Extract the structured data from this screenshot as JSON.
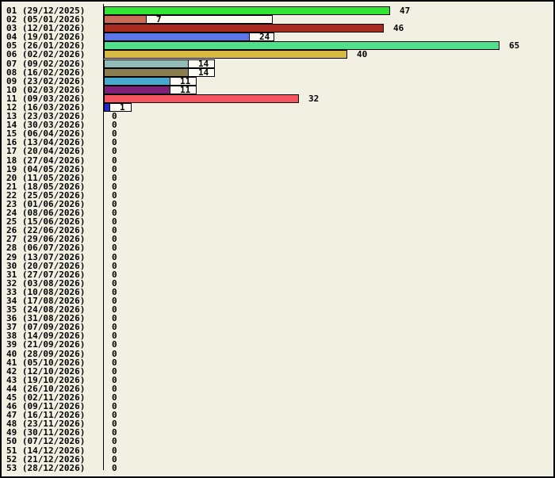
{
  "window": {
    "background": "#F2F0E3",
    "border_color": "#000000",
    "label_box_color": "#FBFBF3"
  },
  "chart_data": {
    "type": "bar",
    "orientation": "horizontal",
    "title": "",
    "xlabel": "",
    "ylabel": "",
    "xlim": [
      0,
      65
    ],
    "grid": false,
    "legend": false,
    "max_value": 65,
    "categories": [
      "01 (29/12/2025)",
      "02 (05/01/2026)",
      "03 (12/01/2026)",
      "04 (19/01/2026)",
      "05 (26/01/2026)",
      "06 (02/02/2026)",
      "07 (09/02/2026)",
      "08 (16/02/2026)",
      "09 (23/02/2026)",
      "10 (02/03/2026)",
      "11 (09/03/2026)",
      "12 (16/03/2026)",
      "13 (23/03/2026)",
      "14 (30/03/2026)",
      "15 (06/04/2026)",
      "16 (13/04/2026)",
      "17 (20/04/2026)",
      "18 (27/04/2026)",
      "19 (04/05/2026)",
      "20 (11/05/2026)",
      "21 (18/05/2026)",
      "22 (25/05/2026)",
      "23 (01/06/2026)",
      "24 (08/06/2026)",
      "25 (15/06/2026)",
      "26 (22/06/2026)",
      "27 (29/06/2026)",
      "28 (06/07/2026)",
      "29 (13/07/2026)",
      "30 (20/07/2026)",
      "31 (27/07/2026)",
      "32 (03/08/2026)",
      "33 (10/08/2026)",
      "34 (17/08/2026)",
      "35 (24/08/2026)",
      "36 (31/08/2026)",
      "37 (07/09/2026)",
      "38 (14/09/2026)",
      "39 (21/09/2026)",
      "40 (28/09/2026)",
      "41 (05/10/2026)",
      "42 (12/10/2026)",
      "43 (19/10/2026)",
      "44 (26/10/2026)",
      "45 (02/11/2026)",
      "46 (09/11/2026)",
      "47 (16/11/2026)",
      "48 (23/11/2026)",
      "49 (30/11/2026)",
      "50 (07/12/2026)",
      "51 (14/12/2026)",
      "52 (21/12/2026)",
      "53 (28/12/2026)"
    ],
    "values": [
      47,
      7,
      46,
      24,
      65,
      40,
      14,
      14,
      11,
      11,
      32,
      1,
      0,
      0,
      0,
      0,
      0,
      0,
      0,
      0,
      0,
      0,
      0,
      0,
      0,
      0,
      0,
      0,
      0,
      0,
      0,
      0,
      0,
      0,
      0,
      0,
      0,
      0,
      0,
      0,
      0,
      0,
      0,
      0,
      0,
      0,
      0,
      0,
      0,
      0,
      0,
      0,
      0
    ],
    "colors": [
      "#32E432",
      "#C9695A",
      "#AA2B1E",
      "#5B76E8",
      "#50E08C",
      "#D8BA40",
      "#92BCB8",
      "#8C7E50",
      "#48AACE",
      "#7D2076",
      "#F65560",
      "#2424CC",
      null,
      null,
      null,
      null,
      null,
      null,
      null,
      null,
      null,
      null,
      null,
      null,
      null,
      null,
      null,
      null,
      null,
      null,
      null,
      null,
      null,
      null,
      null,
      null,
      null,
      null,
      null,
      null,
      null,
      null,
      null,
      null,
      null,
      null,
      null,
      null,
      null,
      null,
      null,
      null,
      null
    ],
    "value_label_boxes": {
      "1": 160,
      "3": 32,
      "6": 34,
      "7": 34,
      "8": 34,
      "9": 34,
      "11": 28
    }
  }
}
